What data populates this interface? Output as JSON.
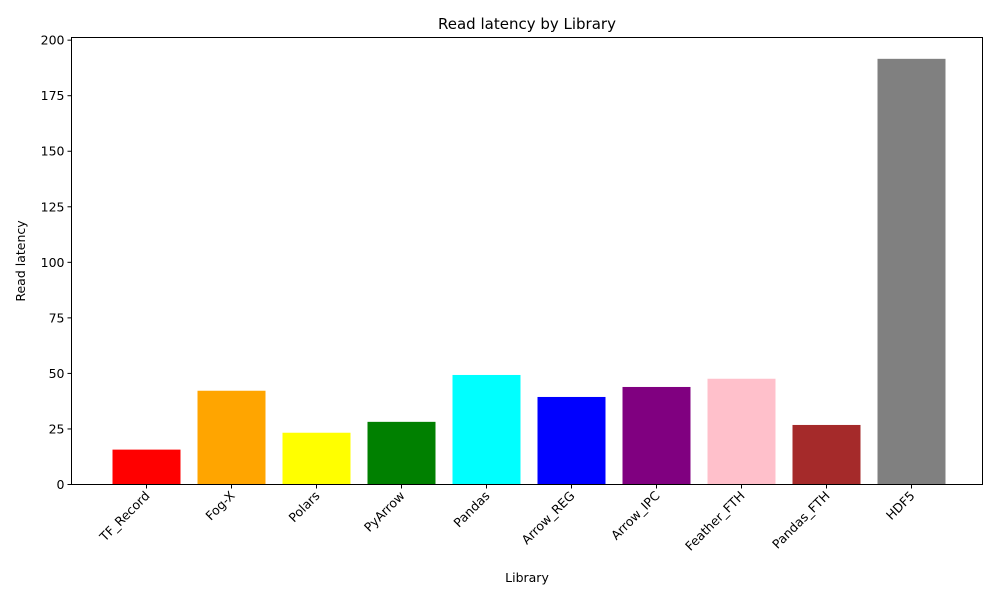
{
  "chart_data": {
    "type": "bar",
    "title": "Read latency by Library",
    "xlabel": "Library",
    "ylabel": "Read latency",
    "categories": [
      "TF_Record",
      "Fog-X",
      "Polars",
      "PyArrow",
      "Pandas",
      "Arrow_REG",
      "Arrow_IPC",
      "Feather_FTH",
      "Pandas_FTH",
      "HDF5"
    ],
    "values": [
      15.7,
      42.2,
      23.3,
      28.2,
      49.3,
      39.4,
      43.9,
      47.6,
      26.8,
      191.6
    ],
    "colors": [
      "#ff0000",
      "#ffa500",
      "#ffff00",
      "#008000",
      "#00ffff",
      "#0000ff",
      "#800080",
      "#ffc0cb",
      "#a52a2a",
      "#808080"
    ],
    "yticks": [
      "0",
      "25",
      "50",
      "75",
      "100",
      "125",
      "150",
      "175",
      "200"
    ],
    "ylim": [
      0,
      201.2
    ],
    "grid": false,
    "legend": "none"
  }
}
